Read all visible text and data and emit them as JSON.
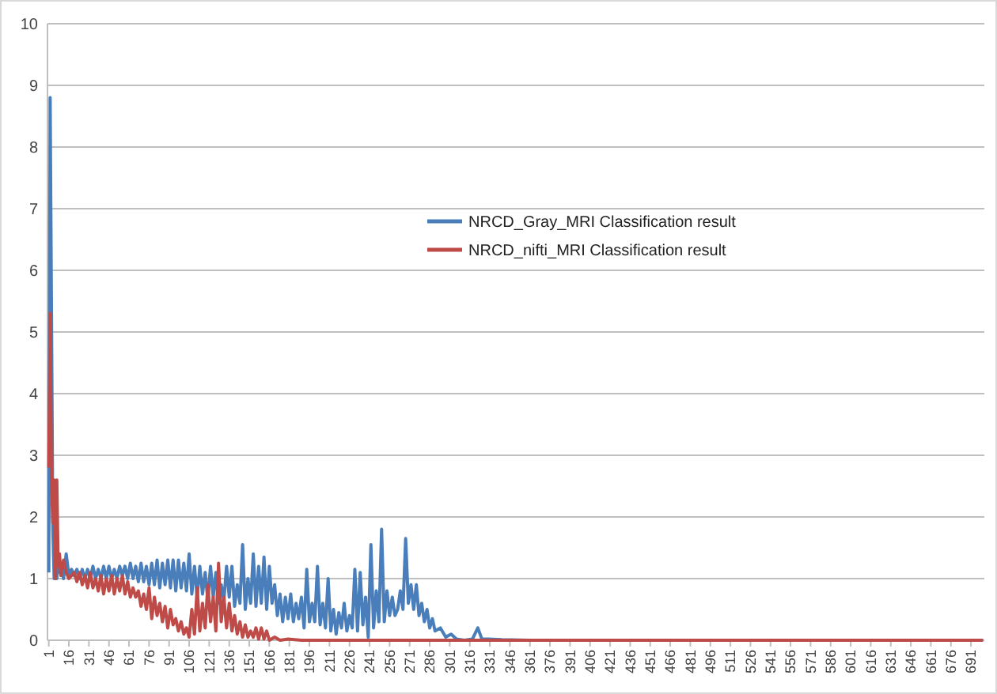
{
  "chart_data": {
    "type": "line",
    "xlim": [
      0,
      701
    ],
    "xticks": [
      1,
      16,
      31,
      46,
      61,
      76,
      91,
      106,
      121,
      136,
      151,
      166,
      181,
      196,
      211,
      226,
      241,
      256,
      271,
      286,
      301,
      316,
      331,
      346,
      361,
      376,
      391,
      406,
      421,
      436,
      451,
      466,
      481,
      496,
      511,
      526,
      541,
      556,
      571,
      586,
      601,
      616,
      631,
      646,
      661,
      676,
      691
    ],
    "ylim": [
      0,
      10
    ],
    "yticks": [
      0,
      1,
      2,
      3,
      4,
      5,
      6,
      7,
      8,
      9,
      10
    ],
    "grid": "y",
    "legend": "right",
    "marker": "none",
    "line_style": "solid",
    "series": [
      {
        "name": "NRCD_Gray_MRI Classification result",
        "color": "#4a7ebb",
        "x": [
          1,
          2,
          3,
          4,
          5,
          6,
          7,
          8,
          9,
          10,
          12,
          14,
          16,
          18,
          20,
          22,
          24,
          26,
          28,
          30,
          32,
          34,
          36,
          38,
          40,
          42,
          44,
          46,
          48,
          50,
          52,
          54,
          56,
          58,
          60,
          62,
          64,
          66,
          68,
          70,
          72,
          74,
          76,
          78,
          80,
          82,
          84,
          86,
          88,
          90,
          92,
          94,
          96,
          98,
          100,
          102,
          104,
          106,
          108,
          110,
          112,
          114,
          116,
          118,
          120,
          122,
          124,
          126,
          128,
          130,
          132,
          134,
          136,
          138,
          140,
          142,
          144,
          146,
          148,
          150,
          152,
          154,
          156,
          158,
          160,
          162,
          164,
          166,
          168,
          170,
          172,
          174,
          176,
          178,
          180,
          182,
          184,
          186,
          188,
          190,
          192,
          194,
          196,
          198,
          200,
          202,
          204,
          206,
          208,
          210,
          212,
          214,
          216,
          218,
          220,
          222,
          224,
          226,
          228,
          230,
          232,
          234,
          236,
          238,
          240,
          242,
          244,
          246,
          248,
          250,
          252,
          254,
          256,
          258,
          260,
          262,
          264,
          266,
          268,
          270,
          272,
          274,
          276,
          278,
          280,
          282,
          284,
          286,
          288,
          290,
          294,
          298,
          302,
          306,
          312,
          318,
          322,
          325,
          330,
          340,
          360,
          700
        ],
        "values": [
          1.1,
          8.8,
          5.3,
          1.8,
          1.0,
          1.9,
          1.0,
          1.4,
          1.1,
          1.2,
          1.0,
          1.4,
          1.05,
          1.15,
          1.05,
          1.15,
          1.0,
          1.15,
          1.0,
          1.15,
          1.0,
          1.2,
          1.0,
          1.15,
          1.0,
          1.2,
          1.0,
          1.2,
          1.0,
          1.15,
          1.0,
          1.2,
          1.05,
          1.2,
          1.0,
          1.25,
          1.0,
          1.2,
          0.95,
          1.25,
          0.95,
          1.2,
          0.9,
          1.25,
          0.9,
          1.3,
          0.85,
          1.25,
          0.9,
          1.3,
          0.85,
          1.3,
          0.8,
          1.3,
          0.85,
          1.25,
          0.8,
          1.4,
          0.75,
          1.2,
          0.7,
          1.2,
          0.75,
          1.1,
          0.65,
          1.2,
          0.7,
          1.1,
          0.6,
          0.9,
          0.65,
          1.2,
          0.7,
          1.2,
          0.55,
          0.9,
          0.6,
          1.55,
          0.5,
          1.0,
          0.6,
          1.4,
          0.55,
          1.2,
          0.6,
          1.35,
          0.5,
          1.2,
          0.6,
          0.9,
          0.4,
          0.75,
          0.3,
          0.7,
          0.35,
          0.75,
          0.3,
          0.6,
          0.35,
          0.7,
          0.2,
          1.15,
          0.3,
          0.6,
          0.3,
          1.2,
          0.25,
          0.6,
          0.2,
          1.0,
          0.15,
          0.5,
          0.1,
          0.45,
          0.2,
          0.6,
          0.15,
          0.4,
          0.2,
          1.15,
          0.15,
          1.1,
          0.25,
          0.7,
          0.05,
          1.55,
          0.2,
          0.8,
          0.3,
          1.8,
          0.3,
          0.8,
          0.4,
          0.7,
          0.4,
          0.5,
          0.8,
          0.5,
          1.65,
          0.6,
          0.9,
          0.5,
          0.9,
          0.4,
          0.6,
          0.3,
          0.5,
          0.2,
          0.35,
          0.15,
          0.2,
          0.05,
          0.1,
          0.02,
          0.0,
          0.02,
          0.2,
          0.02,
          0.02,
          0.01,
          0.0,
          0.0
        ]
      },
      {
        "name": "NRCD_nifti_MRI Classification result",
        "color": "#be4b48",
        "x": [
          1,
          2,
          3,
          4,
          5,
          6,
          7,
          8,
          9,
          10,
          12,
          14,
          16,
          18,
          20,
          22,
          24,
          26,
          28,
          30,
          32,
          34,
          36,
          38,
          40,
          42,
          44,
          46,
          48,
          50,
          52,
          54,
          56,
          58,
          60,
          62,
          64,
          66,
          68,
          70,
          72,
          74,
          76,
          78,
          80,
          82,
          84,
          86,
          88,
          90,
          92,
          94,
          96,
          98,
          100,
          102,
          104,
          106,
          108,
          110,
          112,
          114,
          116,
          118,
          120,
          122,
          124,
          126,
          128,
          130,
          132,
          134,
          136,
          138,
          140,
          142,
          144,
          146,
          148,
          150,
          152,
          154,
          156,
          158,
          160,
          162,
          164,
          166,
          170,
          174,
          180,
          190,
          700
        ],
        "values": [
          2.8,
          5.3,
          2.6,
          1.9,
          2.6,
          1.0,
          2.6,
          1.2,
          1.4,
          1.05,
          1.3,
          1.1,
          1.0,
          1.05,
          1.1,
          0.95,
          1.1,
          0.9,
          1.05,
          0.85,
          1.1,
          0.85,
          1.0,
          0.8,
          1.05,
          0.75,
          1.0,
          0.8,
          1.05,
          0.75,
          1.0,
          0.8,
          1.05,
          0.75,
          0.95,
          0.7,
          0.85,
          0.7,
          0.8,
          0.55,
          0.75,
          0.5,
          0.85,
          0.35,
          0.7,
          0.4,
          0.6,
          0.3,
          0.55,
          0.2,
          0.5,
          0.25,
          0.35,
          0.15,
          0.3,
          0.1,
          0.2,
          0.05,
          0.5,
          0.1,
          0.85,
          0.15,
          0.6,
          0.2,
          0.9,
          0.3,
          0.7,
          0.15,
          1.25,
          0.3,
          0.7,
          0.2,
          0.6,
          0.15,
          0.4,
          0.1,
          0.3,
          0.05,
          0.25,
          0.05,
          0.15,
          0.05,
          0.2,
          0.02,
          0.2,
          0.02,
          0.15,
          0.0,
          0.05,
          0.0,
          0.02,
          0.0,
          0.0
        ]
      }
    ]
  }
}
